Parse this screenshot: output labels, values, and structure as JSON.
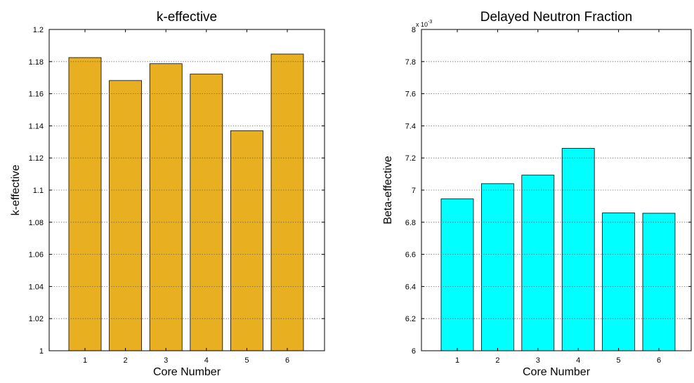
{
  "chart_data": [
    {
      "type": "bar",
      "title": "k-effective",
      "xlabel": "Core Number",
      "ylabel": "k-effective",
      "categories": [
        "1",
        "2",
        "3",
        "4",
        "5",
        "6"
      ],
      "values": [
        1.1825,
        1.1682,
        1.1787,
        1.1722,
        1.137,
        1.1847
      ],
      "ylim": [
        1,
        1.2
      ],
      "yticks": [
        1,
        1.02,
        1.04,
        1.06,
        1.08,
        1.1,
        1.12,
        1.14,
        1.16,
        1.18,
        1.2
      ],
      "ytick_labels": [
        "1",
        "1.02",
        "1.04",
        "1.06",
        "1.08",
        "1.1",
        "1.12",
        "1.14",
        "1.16",
        "1.18",
        "1.2"
      ],
      "exponent_label": "",
      "bar_color": "#e8b020",
      "grid": "y-dotted"
    },
    {
      "type": "bar",
      "title": "Delayed Neutron Fraction",
      "xlabel": "Core Number",
      "ylabel": "Beta-effective",
      "categories": [
        "1",
        "2",
        "3",
        "4",
        "5",
        "6"
      ],
      "values": [
        6.945,
        7.04,
        7.093,
        7.26,
        6.858,
        6.856
      ],
      "value_scale": "x 10^-3",
      "ylim": [
        6,
        8
      ],
      "yticks": [
        6,
        6.2,
        6.4,
        6.6,
        6.8,
        7,
        7.2,
        7.4,
        7.6,
        7.8,
        8
      ],
      "ytick_labels": [
        "6",
        "6.2",
        "6.4",
        "6.6",
        "6.8",
        "7",
        "7.2",
        "7.4",
        "7.6",
        "7.8",
        "8"
      ],
      "exponent_label": "x 10",
      "exponent_sup": "-3",
      "bar_color": "#00ffff",
      "grid": "y-dotted"
    }
  ]
}
